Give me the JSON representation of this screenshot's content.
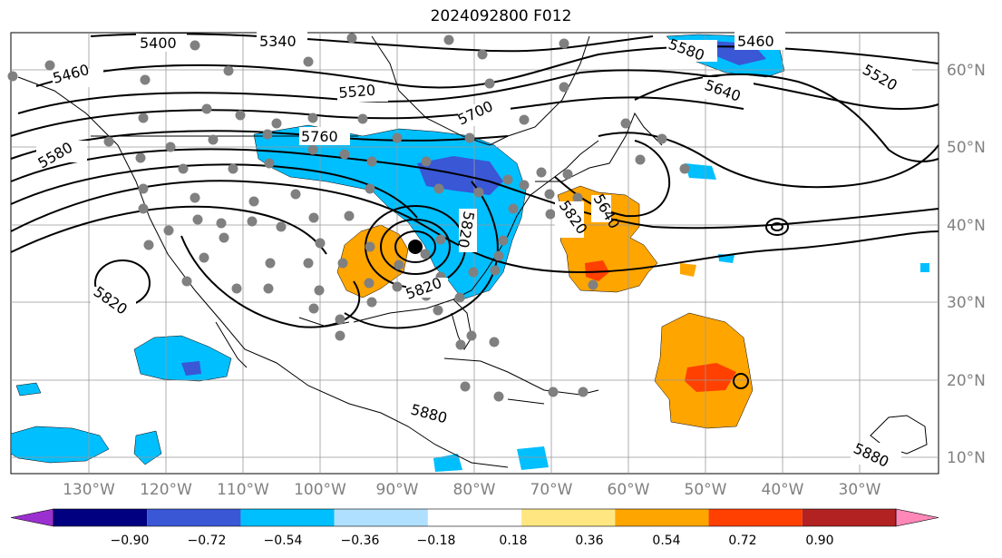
{
  "title": "2024092800 F012",
  "lon_labels": [
    "130°W",
    "120°W",
    "110°W",
    "100°W",
    "90°W",
    "80°W",
    "70°W",
    "60°W",
    "50°W",
    "40°W",
    "30°W"
  ],
  "lat_labels": [
    "60°N",
    "50°N",
    "40°N",
    "30°N",
    "20°N",
    "10°N"
  ],
  "contour_labels": [
    "5400",
    "5340",
    "5460",
    "5460",
    "5520",
    "5520",
    "5580",
    "5580",
    "5640",
    "5640",
    "5700",
    "5760",
    "5820",
    "5820",
    "5820",
    "5820",
    "5880",
    "5880"
  ],
  "colorbar": {
    "ticks": [
      "−0.90",
      "−0.72",
      "−0.54",
      "−0.36",
      "−0.18",
      "0.18",
      "0.36",
      "0.54",
      "0.72",
      "0.90"
    ],
    "colors": [
      "#9b30d0",
      "#000080",
      "#3a57d6",
      "#00bfff",
      "#b0e0ff",
      "#ffffff",
      "#ffe680",
      "#ffa500",
      "#ff4000",
      "#b22222",
      "#ff88b8"
    ]
  }
}
